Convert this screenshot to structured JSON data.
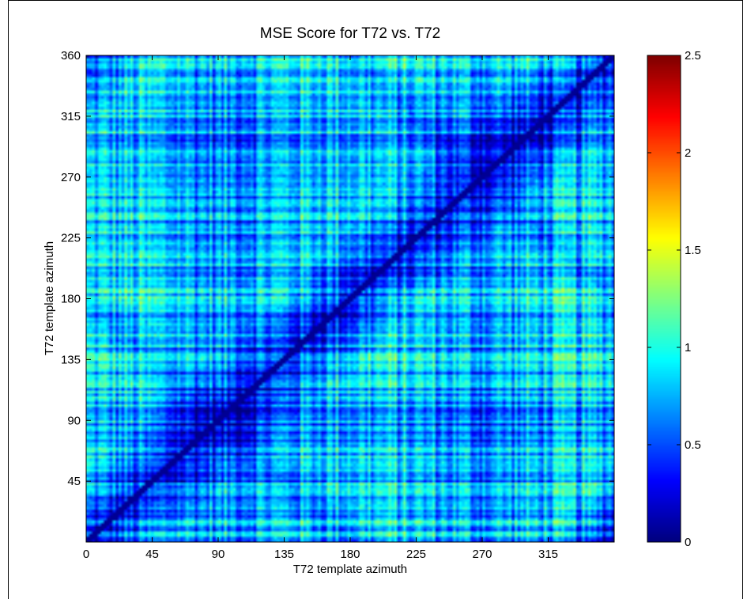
{
  "chart_data": {
    "type": "heatmap",
    "title": "MSE Score for T72 vs. T72",
    "xlabel": "T72 template azimuth",
    "ylabel": "T72 template azimuth",
    "xlim": [
      0,
      360
    ],
    "ylim": [
      0,
      360
    ],
    "x_ticks": [
      0,
      45,
      90,
      135,
      180,
      225,
      270,
      315
    ],
    "x_tick_labels": [
      "0",
      "45",
      "90",
      "135",
      "180",
      "225",
      "270",
      "315"
    ],
    "y_ticks": [
      45,
      90,
      135,
      180,
      225,
      270,
      315,
      360
    ],
    "y_tick_labels": [
      "45",
      "90",
      "135",
      "180",
      "225",
      "270",
      "315",
      "360"
    ],
    "colorbar": {
      "colormap": "jet",
      "min": 0,
      "max": 2.5,
      "ticks": [
        0,
        0.5,
        1,
        1.5,
        2,
        2.5
      ],
      "tick_labels": [
        "0",
        "0.5",
        "1",
        "1.5",
        "2",
        "2.5"
      ]
    },
    "description_values": {
      "diagonal_value": 0,
      "typical_range": [
        0.2,
        1.6
      ]
    }
  }
}
